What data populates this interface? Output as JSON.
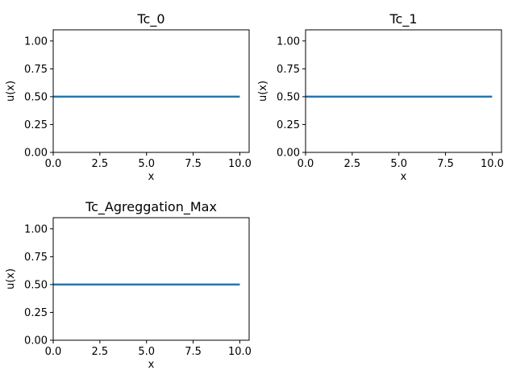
{
  "chart_data": [
    {
      "type": "line",
      "title": "Tc_0",
      "xlabel": "x",
      "ylabel": "u(x)",
      "xlim": [
        0,
        10.5
      ],
      "ylim": [
        0,
        1.1
      ],
      "xticks": [
        "0.0",
        "2.5",
        "5.0",
        "7.5",
        "10.0"
      ],
      "yticks": [
        "0.00",
        "0.25",
        "0.50",
        "0.75",
        "1.00"
      ],
      "grid": false,
      "series": [
        {
          "x": [
            0,
            10
          ],
          "y": [
            0.5,
            0.5
          ],
          "color": "#1f77b4"
        }
      ]
    },
    {
      "type": "line",
      "title": "Tc_1",
      "xlabel": "x",
      "ylabel": "u(x)",
      "xlim": [
        0,
        10.5
      ],
      "ylim": [
        0,
        1.1
      ],
      "xticks": [
        "0.0",
        "2.5",
        "5.0",
        "7.5",
        "10.0"
      ],
      "yticks": [
        "0.00",
        "0.25",
        "0.50",
        "0.75",
        "1.00"
      ],
      "grid": false,
      "series": [
        {
          "x": [
            0,
            10
          ],
          "y": [
            0.5,
            0.5
          ],
          "color": "#1f77b4"
        }
      ]
    },
    {
      "type": "line",
      "title": "Tc_Agreggation_Max",
      "xlabel": "x",
      "ylabel": "u(x)",
      "xlim": [
        0,
        10.5
      ],
      "ylim": [
        0,
        1.1
      ],
      "xticks": [
        "0.0",
        "2.5",
        "5.0",
        "7.5",
        "10.0"
      ],
      "yticks": [
        "0.00",
        "0.25",
        "0.50",
        "0.75",
        "1.00"
      ],
      "grid": false,
      "series": [
        {
          "x": [
            0,
            10
          ],
          "y": [
            0.5,
            0.5
          ],
          "color": "#1f77b4"
        }
      ]
    }
  ]
}
